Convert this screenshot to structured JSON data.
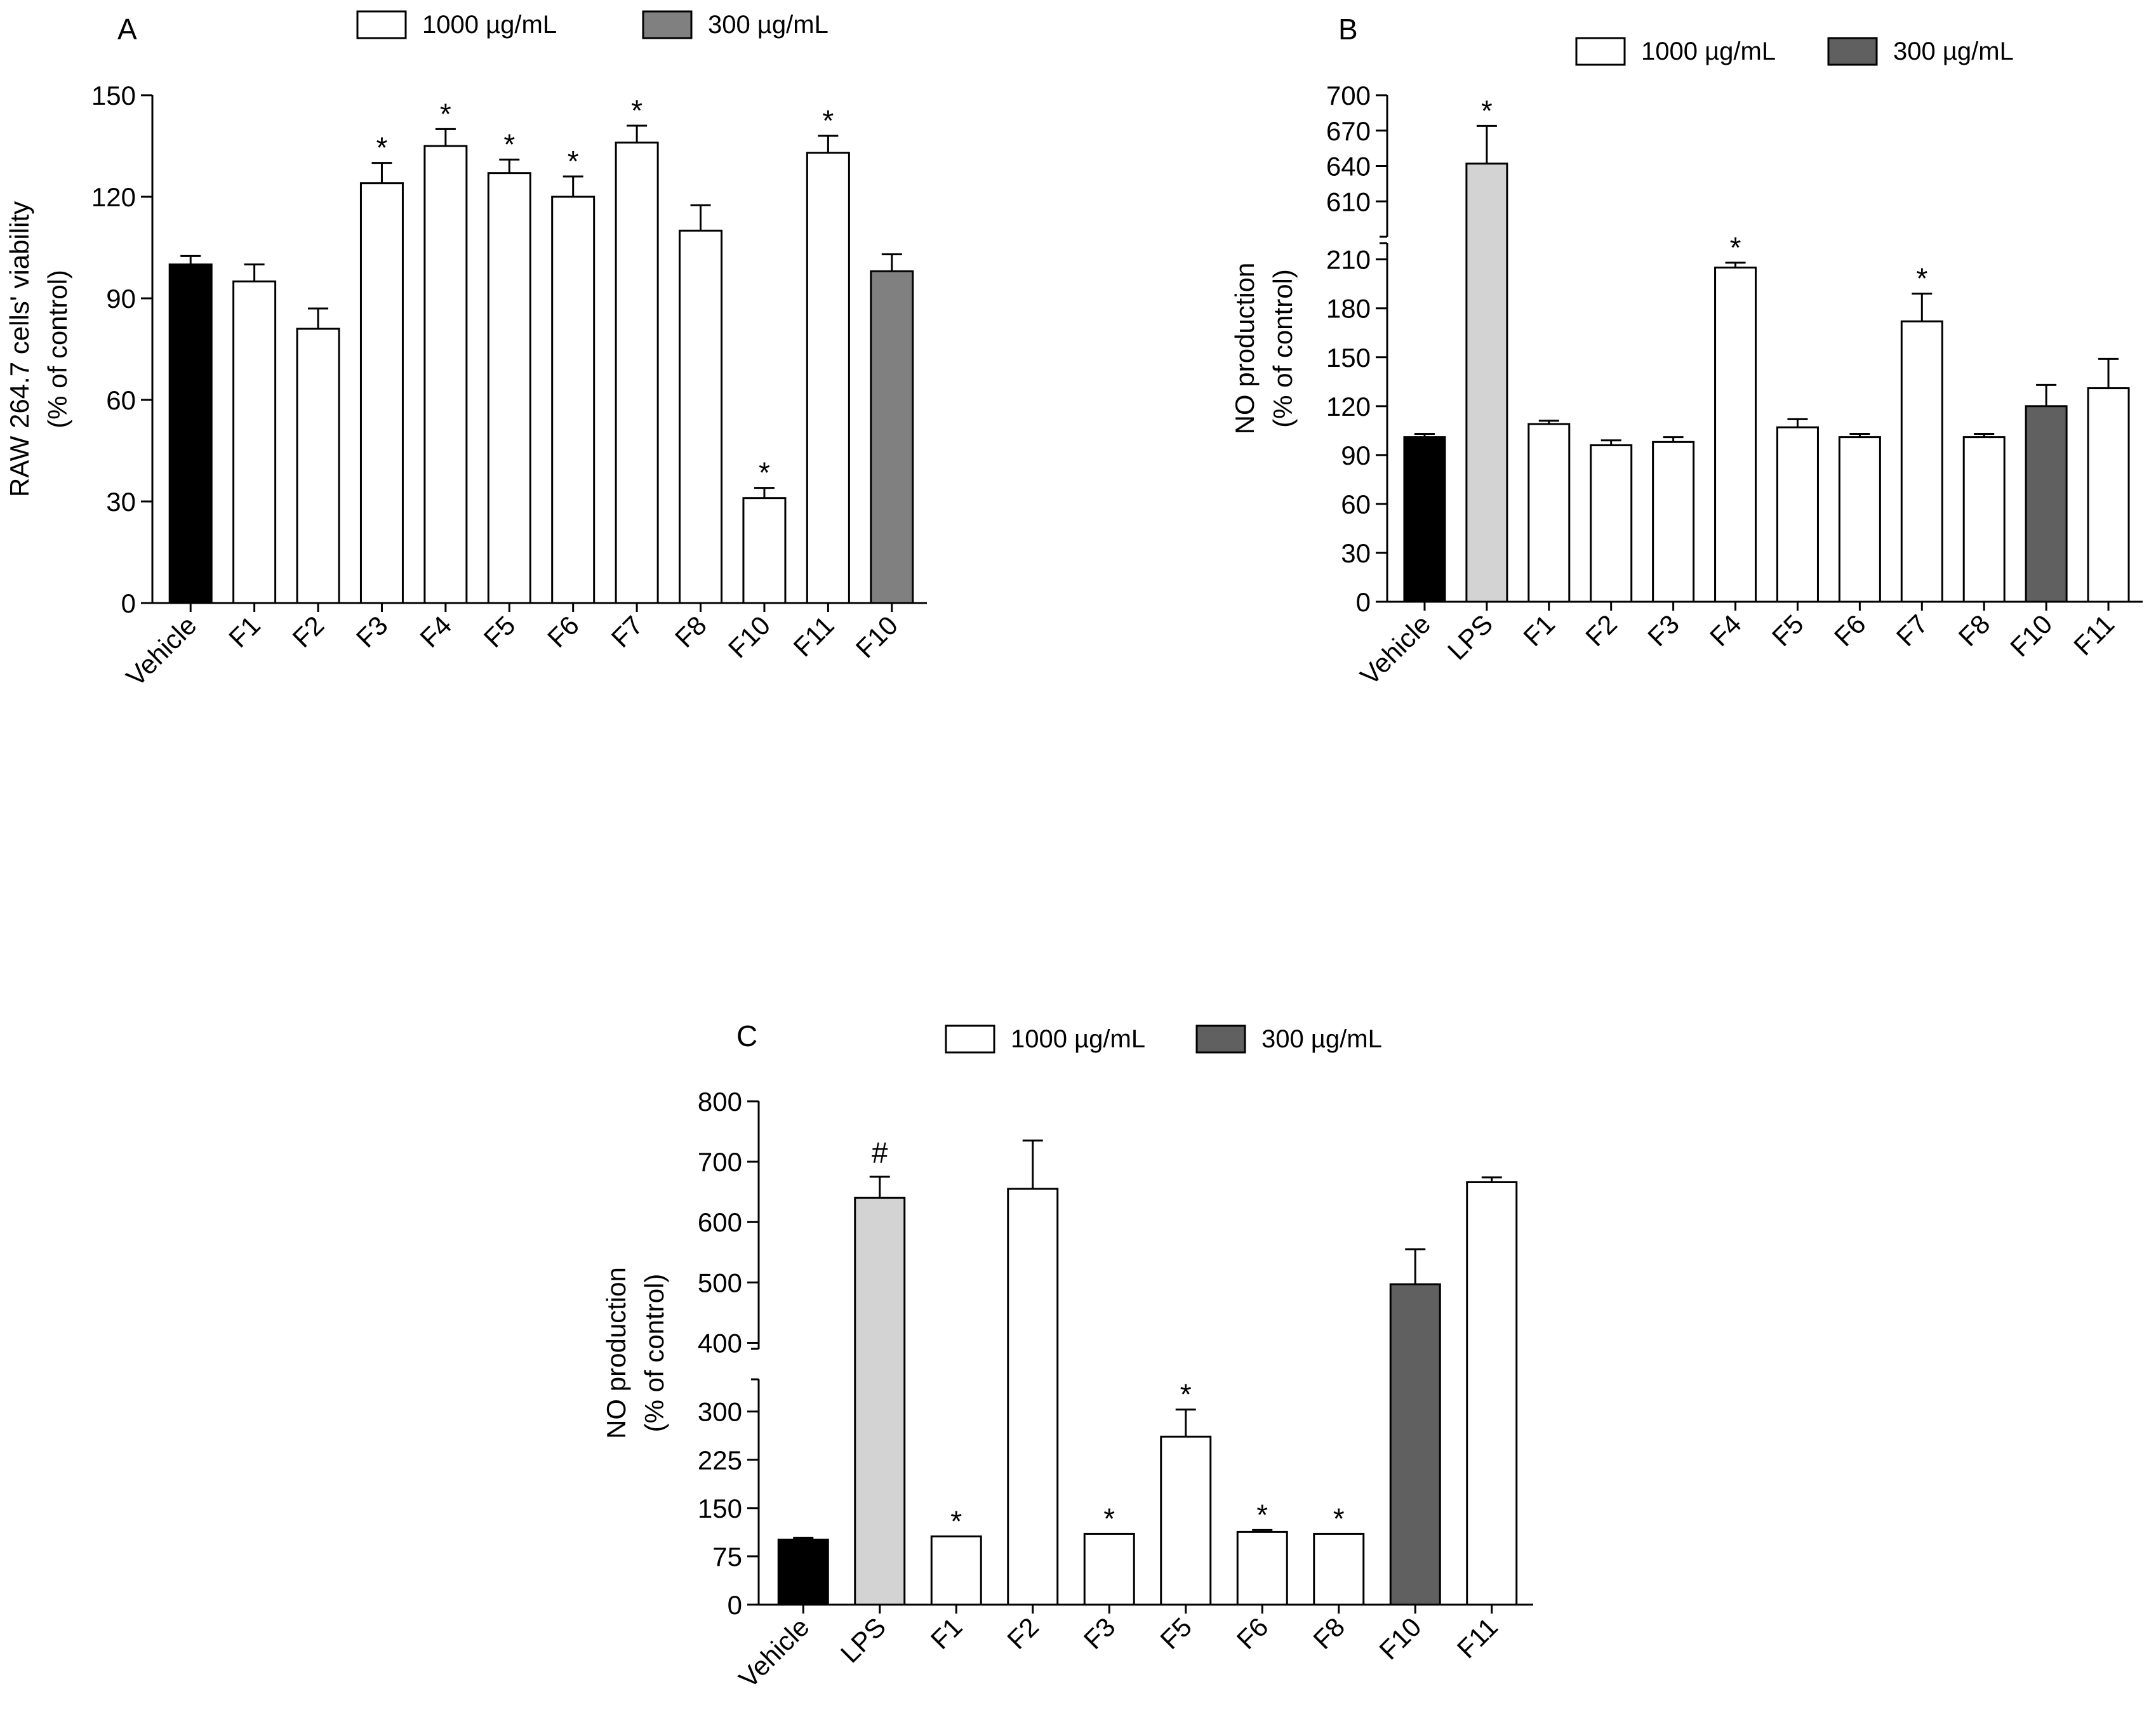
{
  "chart_data": [
    {
      "id": "A",
      "type": "bar",
      "panel_label": "A",
      "ylabel_lines": [
        "RAW 264.7 cells' viability",
        "(% of control)"
      ],
      "yticks": [
        0,
        30,
        60,
        90,
        120,
        150
      ],
      "ylim": [
        0,
        150
      ],
      "axis_break": null,
      "legend": [
        {
          "label": "1000 µg/mL",
          "color": "#ffffff"
        },
        {
          "label": "300 µg/mL",
          "color": "#808080"
        }
      ],
      "categories": [
        "Vehicle",
        "F1",
        "F2",
        "F3",
        "F4",
        "F5",
        "F6",
        "F7",
        "F8",
        "F10",
        "F11",
        "F10"
      ],
      "values": [
        100,
        95,
        81,
        124,
        135,
        127,
        120,
        136,
        110,
        31,
        133,
        98
      ],
      "errors": [
        2.5,
        5,
        6,
        6,
        5,
        4,
        6,
        5,
        7.5,
        3,
        5,
        5
      ],
      "fills": [
        "#000000",
        "#ffffff",
        "#ffffff",
        "#ffffff",
        "#ffffff",
        "#ffffff",
        "#ffffff",
        "#ffffff",
        "#ffffff",
        "#ffffff",
        "#ffffff",
        "#808080"
      ],
      "marks": [
        "",
        "",
        "",
        "*",
        "*",
        "*",
        "*",
        "*",
        "",
        "*",
        "*",
        ""
      ]
    },
    {
      "id": "B",
      "type": "bar",
      "panel_label": "B",
      "ylabel_lines": [
        "NO production",
        "(% of control)"
      ],
      "yticks": [
        0,
        30,
        60,
        90,
        120,
        150,
        180,
        210,
        610,
        640,
        670,
        700
      ],
      "ylim": [
        0,
        700
      ],
      "axis_break": {
        "lower_max": 220,
        "upper_min": 580
      },
      "legend": [
        {
          "label": "1000 µg/mL",
          "color": "#ffffff"
        },
        {
          "label": "300 µg/mL",
          "color": "#606060"
        }
      ],
      "categories": [
        "Vehicle",
        "LPS",
        "F1",
        "F2",
        "F3",
        "F4",
        "F5",
        "F6",
        "F7",
        "F8",
        "F10",
        "F11"
      ],
      "values": [
        101,
        642,
        109,
        96,
        98,
        205,
        107,
        101,
        172,
        101,
        120,
        131
      ],
      "errors": [
        2,
        32,
        2,
        3,
        3,
        3,
        5,
        2,
        17,
        2,
        13,
        18
      ],
      "fills": [
        "#000000",
        "#d3d3d3",
        "#ffffff",
        "#ffffff",
        "#ffffff",
        "#ffffff",
        "#ffffff",
        "#ffffff",
        "#ffffff",
        "#ffffff",
        "#606060",
        "#ffffff"
      ],
      "marks": [
        "",
        "*",
        "",
        "",
        "",
        "*",
        "",
        "",
        "*",
        "",
        "",
        ""
      ]
    },
    {
      "id": "C",
      "type": "bar",
      "panel_label": "C",
      "ylabel_lines": [
        "NO production",
        "(% of control)"
      ],
      "yticks": [
        0,
        75,
        150,
        225,
        300,
        400,
        500,
        600,
        700,
        800
      ],
      "ylim": [
        0,
        800
      ],
      "axis_break": {
        "lower_max": 350,
        "upper_min": 390
      },
      "legend": [
        {
          "label": "1000 µg/mL",
          "color": "#ffffff"
        },
        {
          "label": "300 µg/mL",
          "color": "#606060"
        }
      ],
      "categories": [
        "Vehicle",
        "LPS",
        "F1",
        "F2",
        "F3",
        "F5",
        "F6",
        "F8",
        "F10",
        "F11"
      ],
      "values": [
        101,
        640,
        106,
        655,
        110,
        261,
        113,
        110,
        497,
        666
      ],
      "errors": [
        3,
        35,
        0,
        80,
        0,
        42,
        3,
        0,
        58,
        8
      ],
      "fills": [
        "#000000",
        "#d3d3d3",
        "#ffffff",
        "#ffffff",
        "#ffffff",
        "#ffffff",
        "#ffffff",
        "#ffffff",
        "#606060",
        "#ffffff"
      ],
      "marks": [
        "",
        "#",
        "*",
        "",
        "*",
        "*",
        "*",
        "*",
        "",
        ""
      ]
    }
  ]
}
